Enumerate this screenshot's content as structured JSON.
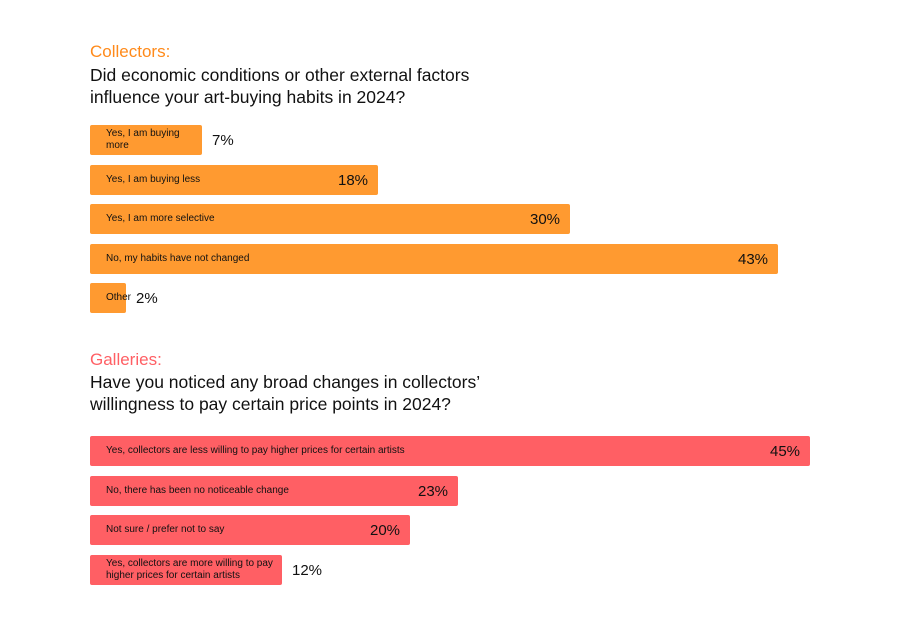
{
  "collectors": {
    "section": "Collectors:",
    "question_lines": [
      "Did economic conditions or other external factors",
      "influence your art-buying habits in 2024?"
    ],
    "color": "#FF9A30"
  },
  "galleries": {
    "section": "Galleries:",
    "question_lines": [
      "Have you noticed any broad changes in collectors’",
      "willingness to pay certain price points in 2024?"
    ],
    "color": "#FF5F64"
  },
  "chart_data": [
    {
      "type": "bar",
      "orientation": "horizontal",
      "title": "Collectors: Did economic conditions or other external factors influence your art-buying habits in 2024?",
      "categories": [
        "Yes, I am buying more",
        "Yes, I am buying less",
        "Yes, I am more selective",
        "No, my habits have not changed",
        "Other"
      ],
      "values": [
        7,
        18,
        30,
        43,
        2
      ],
      "value_labels": [
        "7%",
        "18%",
        "30%",
        "43%",
        "2%"
      ],
      "unit": "%"
    },
    {
      "type": "bar",
      "orientation": "horizontal",
      "title": "Galleries: Have you noticed any broad changes in collectors’ willingness to pay certain price points in 2024?",
      "categories": [
        "Yes, collectors are less willing to pay higher prices for certain artists",
        "No, there has been no noticeable change",
        "Not sure / prefer not to say",
        "Yes, collectors are more willing to pay higher prices for certain artists"
      ],
      "values": [
        45,
        23,
        20,
        12
      ],
      "value_labels": [
        "45%",
        "23%",
        "20%",
        "12%"
      ],
      "unit": "%"
    }
  ]
}
